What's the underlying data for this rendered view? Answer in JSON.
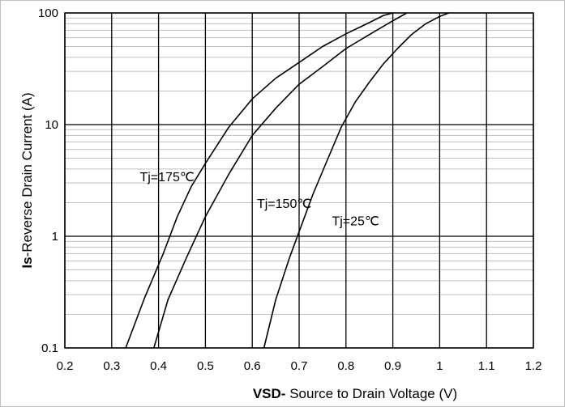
{
  "chart_data": {
    "type": "line",
    "xlabel_bold": "VSD-",
    "xlabel_rest": " Source to Drain Voltage (V)",
    "ylabel_bold": "Is",
    "ylabel_rest": "-Reverse  Drain Current (A)",
    "xlim": [
      0.2,
      1.2
    ],
    "ylim": [
      0.1,
      100
    ],
    "yscale": "log",
    "grid": true,
    "x_ticks": [
      "0.2",
      "0.3",
      "0.4",
      "0.5",
      "0.6",
      "0.7",
      "0.8",
      "0.9",
      "1",
      "1.1",
      "1.2"
    ],
    "y_ticks": [
      "0.1",
      "1",
      "10",
      "100"
    ],
    "series": [
      {
        "name": "Tj=175℃",
        "points": [
          [
            0.33,
            0.1
          ],
          [
            0.37,
            0.28
          ],
          [
            0.41,
            0.7
          ],
          [
            0.44,
            1.5
          ],
          [
            0.47,
            2.8
          ],
          [
            0.5,
            4.5
          ],
          [
            0.55,
            9.5
          ],
          [
            0.6,
            17
          ],
          [
            0.65,
            26
          ],
          [
            0.7,
            36
          ],
          [
            0.75,
            50
          ],
          [
            0.8,
            65
          ],
          [
            0.85,
            82
          ],
          [
            0.88,
            95
          ],
          [
            0.9,
            100
          ]
        ]
      },
      {
        "name": "Tj=150℃",
        "points": [
          [
            0.39,
            0.1
          ],
          [
            0.42,
            0.27
          ],
          [
            0.46,
            0.65
          ],
          [
            0.5,
            1.5
          ],
          [
            0.55,
            3.6
          ],
          [
            0.6,
            8
          ],
          [
            0.65,
            14
          ],
          [
            0.7,
            23
          ],
          [
            0.75,
            33
          ],
          [
            0.8,
            48
          ],
          [
            0.85,
            64
          ],
          [
            0.9,
            85
          ],
          [
            0.93,
            100
          ]
        ]
      },
      {
        "name": "Tj=25℃",
        "points": [
          [
            0.625,
            0.1
          ],
          [
            0.65,
            0.27
          ],
          [
            0.68,
            0.65
          ],
          [
            0.7,
            1.1
          ],
          [
            0.73,
            2.4
          ],
          [
            0.76,
            4.8
          ],
          [
            0.79,
            9.5
          ],
          [
            0.82,
            16
          ],
          [
            0.85,
            24
          ],
          [
            0.88,
            35
          ],
          [
            0.91,
            48
          ],
          [
            0.94,
            64
          ],
          [
            0.97,
            80
          ],
          [
            1.0,
            93
          ],
          [
            1.02,
            100
          ]
        ]
      }
    ],
    "annotations": [
      {
        "text": "Tj=175℃",
        "x": 0.36,
        "y": 3.1
      },
      {
        "text": "Tj=150℃",
        "x": 0.61,
        "y": 1.8
      },
      {
        "text": "Tj=25℃",
        "x": 0.77,
        "y": 1.25
      }
    ]
  }
}
